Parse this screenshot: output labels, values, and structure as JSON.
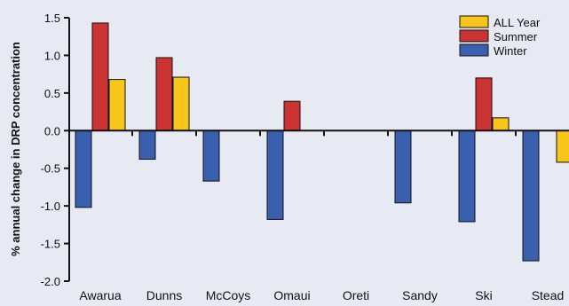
{
  "chart_data": {
    "type": "bar",
    "title": "",
    "xlabel": "",
    "ylabel": "% annual change in DRP concentration",
    "ylim": [
      -2.0,
      1.5
    ],
    "yticks": [
      "1.5",
      "1.0",
      "0.5",
      "0.0",
      "-0.5",
      "-1.0",
      "-1.5",
      "-2.0"
    ],
    "categories": [
      "Awarua",
      "Dunns",
      "McCoys",
      "Omaui",
      "Oreti",
      "Sandy",
      "Ski",
      "Stead"
    ],
    "series": [
      {
        "name": "Winter",
        "color": "#3a5fae",
        "values": [
          -1.02,
          -0.38,
          -0.67,
          -1.18,
          0,
          -0.96,
          -1.21,
          -1.73
        ]
      },
      {
        "name": "Summer",
        "color": "#cc3333",
        "values": [
          1.43,
          0.97,
          0,
          0.39,
          0,
          0,
          0.7,
          0
        ]
      },
      {
        "name": "ALL Year",
        "color": "#f8c619",
        "values": [
          0.68,
          0.71,
          0,
          0,
          0,
          0,
          0.17,
          -0.42
        ]
      }
    ],
    "legend": {
      "position": "top-right",
      "order": [
        "ALL Year",
        "Summer",
        "Winter"
      ]
    },
    "grid": false
  }
}
